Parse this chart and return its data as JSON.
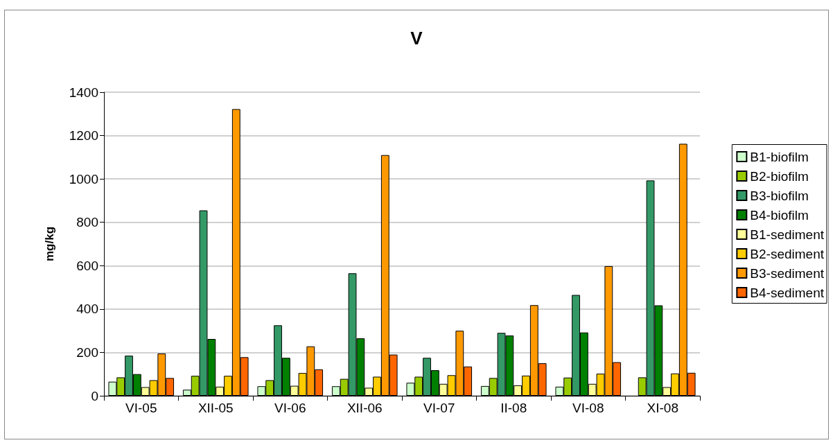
{
  "chart_data": {
    "type": "bar",
    "title": "V",
    "ylabel": "mg/kg",
    "categories": [
      "VI-05",
      "XII-05",
      "VI-06",
      "XII-06",
      "VI-07",
      "II-08",
      "VI-08",
      "XI-08"
    ],
    "series": [
      {
        "name": "B1-biofilm",
        "color": "#ccffcc",
        "values": [
          65,
          28,
          44,
          44,
          60,
          45,
          42,
          null
        ]
      },
      {
        "name": "B2-biofilm",
        "color": "#99cc00",
        "values": [
          85,
          92,
          72,
          78,
          88,
          82,
          84,
          85
        ]
      },
      {
        "name": "B3-biofilm",
        "color": "#339966",
        "values": [
          185,
          855,
          325,
          565,
          175,
          290,
          465,
          993
        ]
      },
      {
        "name": "B4-biofilm",
        "color": "#008000",
        "values": [
          100,
          262,
          175,
          265,
          118,
          278,
          292,
          417
        ]
      },
      {
        "name": "B1-sediment",
        "color": "#ffff99",
        "values": [
          40,
          42,
          46,
          37,
          55,
          48,
          55,
          40
        ]
      },
      {
        "name": "B2-sediment",
        "color": "#ffcc00",
        "values": [
          72,
          92,
          105,
          88,
          95,
          93,
          102,
          103
        ]
      },
      {
        "name": "B3-sediment",
        "color": "#ff9900",
        "values": [
          195,
          1322,
          228,
          1110,
          300,
          418,
          598,
          1162
        ]
      },
      {
        "name": "B4-sediment",
        "color": "#ff6600",
        "values": [
          82,
          178,
          122,
          190,
          135,
          150,
          155,
          106
        ]
      }
    ],
    "ylim": [
      0,
      1400
    ],
    "yticks": [
      0,
      200,
      400,
      600,
      800,
      1000,
      1200,
      1400
    ],
    "grid": "y",
    "legend": "right"
  }
}
